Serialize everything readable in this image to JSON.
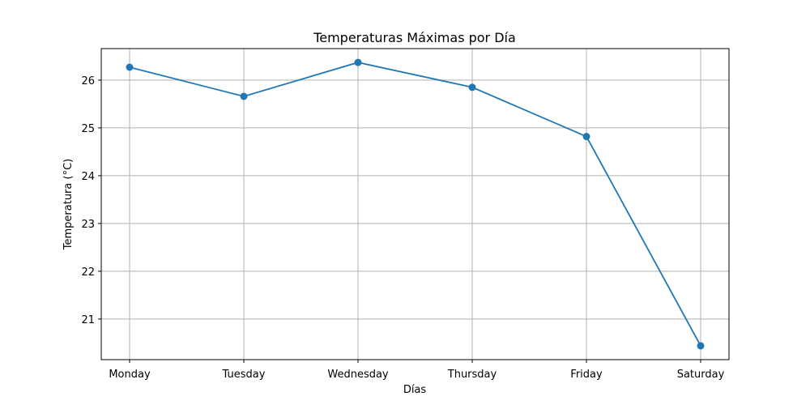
{
  "chart_data": {
    "type": "line",
    "title": "Temperaturas Máximas por Día",
    "xlabel": "Días",
    "ylabel": "Temperatura (°C)",
    "categories": [
      "Monday",
      "Tuesday",
      "Wednesday",
      "Thursday",
      "Friday",
      "Saturday"
    ],
    "series": [
      {
        "values": [
          26.27,
          25.66,
          26.37,
          25.85,
          24.82,
          20.44
        ]
      }
    ],
    "yticks": [
      21,
      22,
      23,
      24,
      25,
      26
    ],
    "ylim": [
      20.15,
      26.66
    ],
    "grid": true,
    "colors": {
      "line": "#1f77b4",
      "grid": "#b0b0b0"
    }
  }
}
